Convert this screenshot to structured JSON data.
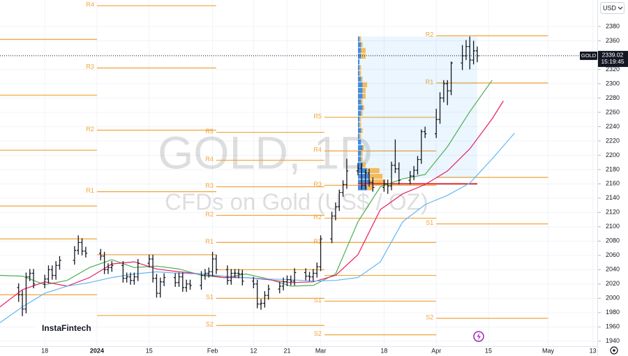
{
  "chart_data": {
    "type": "ohlc",
    "title": "GOLD, 1D",
    "subtitle": "CFDs on Gold (US$ / OZ)",
    "symbol": "GOLD",
    "currency": "USD",
    "brand": "InstaFintech",
    "last_price": 2339.02,
    "countdown": "15:19:45",
    "bar_color": "#131722",
    "x": [
      -7,
      -6,
      -5,
      -4,
      -3,
      0,
      1,
      2,
      3,
      4,
      8,
      9,
      10,
      11,
      15,
      16,
      17,
      18,
      21,
      22,
      23,
      24,
      25,
      28,
      29,
      30,
      31,
      32,
      35,
      36,
      37,
      38,
      39,
      42,
      43,
      44,
      45,
      46,
      49,
      50,
      51,
      52,
      53,
      56,
      57,
      58,
      59,
      60,
      63,
      64,
      65,
      66,
      67,
      70,
      71,
      72,
      73,
      74,
      77,
      78,
      79,
      80,
      81,
      84,
      85,
      86,
      87,
      88,
      91,
      92,
      93,
      94,
      95,
      98,
      99,
      100,
      101,
      102,
      105,
      106,
      107,
      108,
      109,
      112,
      113,
      114,
      115,
      116
    ],
    "open": [
      2015,
      2005,
      1985,
      2030,
      2035,
      2020,
      2027,
      2040,
      2032,
      2046,
      2053,
      2067,
      2078,
      2066,
      2063,
      2059,
      2040,
      2043,
      2046,
      2028,
      2030,
      2025,
      2030,
      2049,
      2055,
      2028,
      2007,
      2023,
      2029,
      2022,
      2030,
      2015,
      2020,
      2018,
      2032,
      2035,
      2037,
      2055,
      2040,
      2025,
      2035,
      2035,
      2034,
      2024,
      2020,
      1992,
      1993,
      2004,
      2013,
      2017,
      2023,
      2026,
      2024,
      2036,
      2031,
      2030,
      2035,
      2044,
      2083,
      2115,
      2128,
      2148,
      2159,
      2178,
      2182,
      2158,
      2175,
      2162,
      2155,
      2160,
      2157,
      2186,
      2181,
      2165,
      2171,
      2179,
      2194,
      2233,
      2230,
      2250,
      2280,
      2300,
      2290,
      2329,
      2339,
      2352,
      2333,
      2346
    ],
    "high": [
      2021,
      2011,
      2036,
      2041,
      2041,
      2033,
      2046,
      2046,
      2052,
      2059,
      2073,
      2088,
      2084,
      2072,
      2069,
      2065,
      2049,
      2052,
      2052,
      2036,
      2036,
      2036,
      2055,
      2061,
      2061,
      2034,
      2029,
      2035,
      2035,
      2036,
      2036,
      2026,
      2026,
      2038,
      2041,
      2043,
      2065,
      2061,
      2046,
      2041,
      2041,
      2041,
      2040,
      2030,
      2026,
      1999,
      2010,
      2019,
      2023,
      2029,
      2032,
      2032,
      2042,
      2042,
      2037,
      2041,
      2050,
      2088,
      2121,
      2134,
      2152,
      2165,
      2195,
      2189,
      2189,
      2180,
      2181,
      2169,
      2166,
      2166,
      2191,
      2222,
      2190,
      2178,
      2185,
      2199,
      2236,
      2240,
      2265,
      2288,
      2305,
      2305,
      2331,
      2354,
      2361,
      2366,
      2360,
      2352
    ],
    "low": [
      1995,
      1975,
      1979,
      2024,
      2014,
      2014,
      2021,
      2026,
      2026,
      2040,
      2047,
      2061,
      2060,
      2057,
      2053,
      2034,
      2034,
      2037,
      2022,
      2022,
      2019,
      2019,
      2024,
      2043,
      2022,
      2001,
      2001,
      2017,
      2016,
      2016,
      2009,
      2009,
      2012,
      2012,
      2026,
      2029,
      2031,
      2034,
      2019,
      2019,
      2029,
      2028,
      2018,
      2014,
      1986,
      1984,
      1987,
      1998,
      2007,
      2011,
      2017,
      2018,
      2018,
      2025,
      2024,
      2024,
      2029,
      2038,
      2077,
      2109,
      2122,
      2142,
      2153,
      2172,
      2152,
      2152,
      2156,
      2149,
      2149,
      2146,
      2151,
      2175,
      2159,
      2159,
      2165,
      2173,
      2188,
      2224,
      2224,
      2244,
      2274,
      2270,
      2284,
      2319,
      2333,
      2320,
      2327,
      2330
    ],
    "close": [
      2005,
      1985,
      2030,
      2035,
      2020,
      2027,
      2040,
      2032,
      2046,
      2053,
      2067,
      2078,
      2066,
      2063,
      2059,
      2040,
      2043,
      2046,
      2028,
      2030,
      2025,
      2030,
      2049,
      2055,
      2028,
      2007,
      2023,
      2029,
      2022,
      2030,
      2015,
      2020,
      2018,
      2032,
      2035,
      2037,
      2055,
      2040,
      2025,
      2035,
      2035,
      2034,
      2024,
      2020,
      1992,
      1993,
      2004,
      2013,
      2017,
      2023,
      2026,
      2024,
      2036,
      2031,
      2030,
      2035,
      2044,
      2083,
      2115,
      2128,
      2148,
      2159,
      2178,
      2182,
      2158,
      2175,
      2162,
      2155,
      2160,
      2157,
      2186,
      2181,
      2165,
      2171,
      2179,
      2194,
      2233,
      2230,
      2250,
      2280,
      2300,
      2290,
      2329,
      2339,
      2352,
      2333,
      2346,
      2339
    ],
    "series": [
      {
        "color": "#4caf50",
        "x": [
          -12,
          -6,
          0,
          6,
          12,
          18,
          24,
          30,
          36,
          42,
          48,
          54,
          60,
          66,
          72,
          78,
          84,
          90,
          96,
          102,
          108,
          114,
          120
        ],
        "values": [
          2032,
          2031,
          2019,
          2025,
          2043,
          2054,
          2043,
          2045,
          2041,
          2032,
          2029,
          2034,
          2027,
          2017,
          2018,
          2034,
          2107,
          2156,
          2167,
          2173,
          2212,
          2261,
          2305
        ]
      },
      {
        "color": "#e91e63",
        "x": [
          -12,
          -6,
          0,
          6,
          12,
          18,
          24,
          30,
          36,
          42,
          48,
          54,
          60,
          66,
          72,
          78,
          84,
          90,
          96,
          102,
          108,
          114,
          120,
          123
        ],
        "values": [
          1988,
          2012,
          2023,
          2017,
          2029,
          2048,
          2051,
          2041,
          2037,
          2034,
          2029,
          2029,
          2026,
          2022,
          2023,
          2032,
          2061,
          2124,
          2146,
          2159,
          2178,
          2209,
          2251,
          2276
        ]
      },
      {
        "color": "#64b5f6",
        "x": [
          -12,
          -6,
          0,
          6,
          12,
          18,
          24,
          30,
          36,
          42,
          48,
          54,
          60,
          66,
          72,
          78,
          84,
          90,
          96,
          102,
          108,
          114,
          120,
          126
        ],
        "values": [
          1966,
          1988,
          2007,
          2017,
          2022,
          2029,
          2034,
          2037,
          2035,
          2034,
          2031,
          2029,
          2027,
          2026,
          2024,
          2025,
          2029,
          2051,
          2107,
          2131,
          2144,
          2161,
          2195,
          2231
        ]
      }
    ],
    "pivot_color": "#f2a33a",
    "pivots": [
      {
        "x": [
          -12,
          14
        ],
        "levels": [
          {
            "label": null,
            "value": 2362
          },
          {
            "label": null,
            "value": 2284
          },
          {
            "label": null,
            "value": 2207
          },
          {
            "label": null,
            "value": 2129
          },
          {
            "label": null,
            "value": 2083
          },
          {
            "label": null,
            "value": 2005
          }
        ]
      },
      {
        "x": [
          14,
          46
        ],
        "levels": [
          {
            "label": "R4",
            "value": 2409
          },
          {
            "label": "R3",
            "value": 2322
          },
          {
            "label": "R2",
            "value": 2235
          },
          {
            "label": "R1",
            "value": 2149
          },
          {
            "label": null,
            "value": 2061
          },
          {
            "label": null,
            "value": 1976
          }
        ]
      },
      {
        "x": [
          46,
          75
        ],
        "levels": [
          {
            "label": "R5",
            "value": 2232
          },
          {
            "label": "R4",
            "value": 2193
          },
          {
            "label": "R3",
            "value": 2156
          },
          {
            "label": "R2",
            "value": 2116
          },
          {
            "label": "R1",
            "value": 2078
          },
          {
            "label": null,
            "value": 2040
          },
          {
            "label": "S1",
            "value": 2000
          },
          {
            "label": "S2",
            "value": 1962
          }
        ]
      },
      {
        "x": [
          75,
          105
        ],
        "levels": [
          {
            "label": "R5",
            "value": 2253
          },
          {
            "label": "R4",
            "value": 2206
          },
          {
            "label": "R3",
            "value": 2158
          },
          {
            "label": "R2",
            "value": 2112
          },
          {
            "label": "R1",
            "value": 2078
          },
          {
            "label": null,
            "value": 2032
          },
          {
            "label": "S1",
            "value": 1996
          },
          {
            "label": "S2",
            "value": 1949
          }
        ]
      },
      {
        "x": [
          105,
          135
        ],
        "levels": [
          {
            "label": "R2",
            "value": 2367
          },
          {
            "label": "R1",
            "value": 2301
          },
          {
            "label": null,
            "value": 2169
          },
          {
            "label": "S1",
            "value": 2104
          },
          {
            "label": "S2",
            "value": 1972
          }
        ]
      }
    ],
    "volume_profile": {
      "range_x": [
        84,
        116
      ],
      "range_y": [
        2168,
        2366
      ],
      "range_color": "#2196f3",
      "poc": 2160,
      "poc_color": "#d32f2f",
      "up_color": "#2979d6",
      "down_color": "#f5b041",
      "prices": [
        2150,
        2158,
        2166,
        2174,
        2182,
        2190,
        2198,
        2206,
        2214,
        2222,
        2230,
        2238,
        2246,
        2254,
        2262,
        2270,
        2278,
        2286,
        2294,
        2302,
        2310,
        2318,
        2326,
        2334,
        2342,
        2350,
        2358
      ],
      "up": [
        6,
        8,
        7,
        6,
        3,
        2,
        2,
        3,
        2,
        1,
        2,
        1,
        1,
        2,
        3,
        2,
        3,
        3,
        3,
        2,
        1,
        1,
        1,
        2,
        2,
        2,
        1
      ],
      "down": [
        4,
        10,
        9,
        8,
        2,
        1,
        1,
        1,
        0,
        1,
        1,
        1,
        1,
        1,
        1,
        1,
        2,
        2,
        3,
        1,
        1,
        1,
        0,
        3,
        3,
        1,
        1
      ]
    },
    "xlim": [
      -12,
      148
    ],
    "ylim": [
      1933,
      2417
    ],
    "xticks": [
      {
        "value": 0,
        "label": "18"
      },
      {
        "value": 14,
        "label": "2024"
      },
      {
        "value": 28,
        "label": "15"
      },
      {
        "value": 45,
        "label": "Feb"
      },
      {
        "value": 56,
        "label": "12"
      },
      {
        "value": 65,
        "label": "21"
      },
      {
        "value": 74,
        "label": "Mar"
      },
      {
        "value": 91,
        "label": "18"
      },
      {
        "value": 105,
        "label": "Apr"
      },
      {
        "value": 119,
        "label": "15"
      },
      {
        "value": 135,
        "label": "May"
      },
      {
        "value": 147,
        "label": "13"
      }
    ],
    "yticks": [
      1940,
      1960,
      1980,
      2000,
      2020,
      2040,
      2060,
      2080,
      2100,
      2120,
      2140,
      2160,
      2180,
      2200,
      2220,
      2240,
      2260,
      2280,
      2300,
      2320,
      2340,
      2360,
      2380
    ],
    "grid": true
  }
}
